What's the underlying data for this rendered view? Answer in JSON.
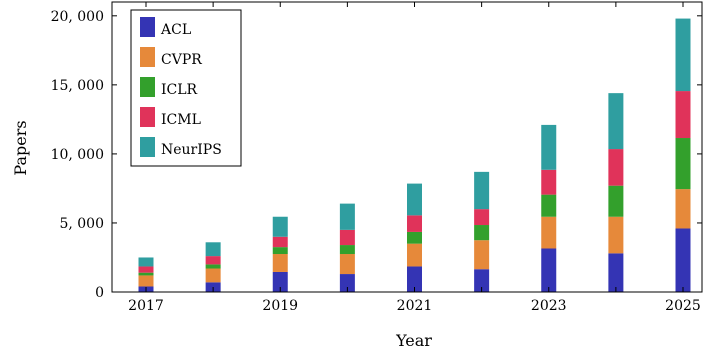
{
  "chart_data": {
    "type": "bar",
    "stacked": true,
    "categories": [
      "2017",
      "2018",
      "2019",
      "2020",
      "2021",
      "2022",
      "2023",
      "2024",
      "2025"
    ],
    "series": [
      {
        "name": "ACL",
        "color": "#3434b4",
        "values": [
          400,
          700,
          1450,
          1300,
          1850,
          1650,
          3150,
          2800,
          4600
        ]
      },
      {
        "name": "CVPR",
        "color": "#e6893a",
        "values": [
          800,
          1000,
          1300,
          1450,
          1650,
          2100,
          2300,
          2650,
          2850
        ]
      },
      {
        "name": "ICLR",
        "color": "#33a02c",
        "values": [
          200,
          300,
          500,
          650,
          850,
          1100,
          1600,
          2250,
          3700
        ]
      },
      {
        "name": "ICML",
        "color": "#e0335a",
        "values": [
          450,
          600,
          750,
          1100,
          1200,
          1150,
          1800,
          2650,
          3400
        ]
      },
      {
        "name": "NeurIPS",
        "color": "#2f9ea0",
        "values": [
          650,
          1000,
          1450,
          1900,
          2300,
          2700,
          3250,
          4050,
          5250
        ]
      }
    ],
    "title": "",
    "xlabel": "Year",
    "ylabel": "Papers",
    "ylim": [
      0,
      21000
    ],
    "yticks": [
      0,
      5000,
      10000,
      15000,
      20000
    ],
    "ytick_labels": [
      "0",
      "5, 000",
      "10, 000",
      "15, 000",
      "20, 000"
    ],
    "xticks": [
      "2017",
      "2019",
      "2021",
      "2023",
      "2025"
    ],
    "grid": false,
    "legend_position": "top-left"
  }
}
